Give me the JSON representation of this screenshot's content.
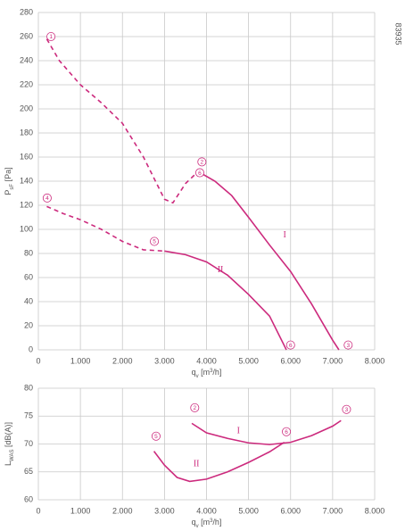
{
  "chart_data": [
    {
      "type": "line",
      "id": "83935",
      "xlim": [
        0,
        8000
      ],
      "xticks": [
        0,
        {
          "value": 1000,
          "label": "1.000"
        },
        {
          "value": 2000,
          "label": "2.000"
        },
        {
          "value": 3000,
          "label": "3.000"
        },
        {
          "value": 4000,
          "label": "4.000"
        },
        {
          "value": 5000,
          "label": "5.000"
        },
        {
          "value": 6000,
          "label": "6.000"
        },
        {
          "value": 7000,
          "label": "7.000"
        },
        {
          "value": 8000,
          "label": "8.000"
        }
      ],
      "ylim": [
        0,
        280
      ],
      "yticks": [
        0,
        20,
        40,
        60,
        80,
        100,
        120,
        140,
        160,
        180,
        200,
        220,
        240,
        260,
        280
      ],
      "grid": true,
      "xlabel": [
        {
          "text": "q",
          "role": "normal"
        },
        {
          "text": "v",
          "role": "sub"
        },
        {
          "text": " [m",
          "role": "normal"
        },
        {
          "text": "3",
          "role": "sup"
        },
        {
          "text": "/h]",
          "role": "normal"
        }
      ],
      "ylabel": [
        {
          "text": "P",
          "role": "normal"
        },
        {
          "text": "sF",
          "role": "sub"
        },
        {
          "text": " [Pa]",
          "role": "normal"
        }
      ],
      "series": [
        {
          "color": "#cc2a7d",
          "linestyle": "dashed",
          "x": [
            200,
            500,
            1000,
            1500,
            2000,
            2500,
            3000,
            3200,
            3500,
            3800
          ],
          "values": [
            258,
            240,
            220,
            205,
            188,
            160,
            125,
            122,
            138,
            148
          ]
        },
        {
          "color": "#cc2a7d",
          "linestyle": "solid",
          "x": [
            3800,
            4200,
            4600,
            5000,
            5500,
            6000,
            6500,
            7000,
            7150
          ],
          "values": [
            148,
            140,
            128,
            110,
            87,
            65,
            38,
            8,
            0
          ]
        },
        {
          "color": "#cc2a7d",
          "linestyle": "dashed",
          "x": [
            200,
            600,
            1000,
            1500,
            2000,
            2500,
            3000
          ],
          "values": [
            119,
            113,
            108,
            100,
            90,
            83,
            82
          ]
        },
        {
          "color": "#cc2a7d",
          "linestyle": "solid",
          "x": [
            3000,
            3500,
            4000,
            4500,
            5000,
            5500,
            5900
          ],
          "values": [
            82,
            79,
            73,
            62,
            46,
            28,
            0
          ]
        }
      ],
      "annotations": [
        {
          "text": "1",
          "x": 300,
          "y": 260,
          "circled": true
        },
        {
          "text": "2",
          "x": 3890,
          "y": 156,
          "circled": true
        },
        {
          "text": "6",
          "x": 3840,
          "y": 147,
          "circled": true
        },
        {
          "text": "4",
          "x": 210,
          "y": 126,
          "circled": true
        },
        {
          "text": "5",
          "x": 2760,
          "y": 90,
          "circled": true
        },
        {
          "text": "6",
          "x": 6000,
          "y": 4,
          "circled": true
        },
        {
          "text": "3",
          "x": 7370,
          "y": 4,
          "circled": true
        },
        {
          "text": "I",
          "x": 5860,
          "y": 95,
          "circled": false
        },
        {
          "text": "II",
          "x": 4330,
          "y": 66,
          "circled": false
        }
      ]
    },
    {
      "type": "line",
      "xlim": [
        0,
        8000
      ],
      "xticks": [
        0,
        {
          "value": 1000,
          "label": "1.000"
        },
        {
          "value": 2000,
          "label": "2.000"
        },
        {
          "value": 3000,
          "label": "3.000"
        },
        {
          "value": 4000,
          "label": "4.000"
        },
        {
          "value": 5000,
          "label": "5.000"
        },
        {
          "value": 6000,
          "label": "6.000"
        },
        {
          "value": 7000,
          "label": "7.000"
        },
        {
          "value": 8000,
          "label": "8.000"
        }
      ],
      "ylim": [
        60,
        80
      ],
      "yticks": [
        60,
        65,
        70,
        75,
        80
      ],
      "grid": true,
      "xlabel": [
        {
          "text": "q",
          "role": "normal"
        },
        {
          "text": "v",
          "role": "sub"
        },
        {
          "text": " [m",
          "role": "normal"
        },
        {
          "text": "3",
          "role": "sup"
        },
        {
          "text": "/h]",
          "role": "normal"
        }
      ],
      "ylabel": [
        {
          "text": "L",
          "role": "normal"
        },
        {
          "text": "WAS",
          "role": "sub"
        },
        {
          "text": " [dB(A)]",
          "role": "normal"
        }
      ],
      "series": [
        {
          "color": "#cc2a7d",
          "linestyle": "solid",
          "x": [
            3650,
            4000,
            4500,
            5000,
            5500,
            6000,
            6500,
            7000,
            7200
          ],
          "values": [
            73.7,
            72,
            71,
            70.2,
            69.9,
            70.3,
            71.5,
            73.2,
            74.2
          ]
        },
        {
          "color": "#cc2a7d",
          "linestyle": "solid",
          "x": [
            2750,
            3000,
            3300,
            3600,
            4000,
            4500,
            5000,
            5500,
            5850
          ],
          "values": [
            68.7,
            66.2,
            64,
            63.3,
            63.7,
            65,
            66.7,
            68.6,
            70.3
          ]
        }
      ],
      "annotations": [
        {
          "text": "5",
          "x": 2800,
          "y": 71.4,
          "circled": true
        },
        {
          "text": "2",
          "x": 3720,
          "y": 76.5,
          "circled": true
        },
        {
          "text": "6",
          "x": 5900,
          "y": 72.2,
          "circled": true
        },
        {
          "text": "3",
          "x": 7330,
          "y": 76.2,
          "circled": true
        },
        {
          "text": "I",
          "x": 4760,
          "y": 72.3,
          "circled": false
        },
        {
          "text": "II",
          "x": 3760,
          "y": 66.4,
          "circled": false
        }
      ]
    }
  ]
}
